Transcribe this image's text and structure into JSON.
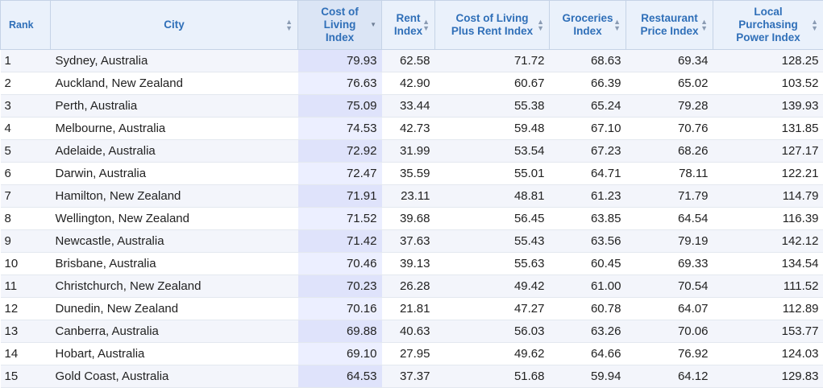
{
  "table": {
    "headers": {
      "rank": "Rank",
      "city": "City",
      "col": "Cost of Living Index",
      "rent": "Rent Index",
      "colr": "Cost of Living Plus Rent Index",
      "groceries": "Groceries Index",
      "restaurant": "Restaurant Price Index",
      "lppi": "Local Purchasing Power Index"
    },
    "sort": {
      "column": "Cost of Living Index",
      "direction": "descending"
    },
    "rows": [
      {
        "rank": "1",
        "city": "Sydney, Australia",
        "col": "79.93",
        "rent": "62.58",
        "colr": "71.72",
        "groceries": "68.63",
        "restaurant": "69.34",
        "lppi": "128.25"
      },
      {
        "rank": "2",
        "city": "Auckland, New Zealand",
        "col": "76.63",
        "rent": "42.90",
        "colr": "60.67",
        "groceries": "66.39",
        "restaurant": "65.02",
        "lppi": "103.52"
      },
      {
        "rank": "3",
        "city": "Perth, Australia",
        "col": "75.09",
        "rent": "33.44",
        "colr": "55.38",
        "groceries": "65.24",
        "restaurant": "79.28",
        "lppi": "139.93"
      },
      {
        "rank": "4",
        "city": "Melbourne, Australia",
        "col": "74.53",
        "rent": "42.73",
        "colr": "59.48",
        "groceries": "67.10",
        "restaurant": "70.76",
        "lppi": "131.85"
      },
      {
        "rank": "5",
        "city": "Adelaide, Australia",
        "col": "72.92",
        "rent": "31.99",
        "colr": "53.54",
        "groceries": "67.23",
        "restaurant": "68.26",
        "lppi": "127.17"
      },
      {
        "rank": "6",
        "city": "Darwin, Australia",
        "col": "72.47",
        "rent": "35.59",
        "colr": "55.01",
        "groceries": "64.71",
        "restaurant": "78.11",
        "lppi": "122.21"
      },
      {
        "rank": "7",
        "city": "Hamilton, New Zealand",
        "col": "71.91",
        "rent": "23.11",
        "colr": "48.81",
        "groceries": "61.23",
        "restaurant": "71.79",
        "lppi": "114.79"
      },
      {
        "rank": "8",
        "city": "Wellington, New Zealand",
        "col": "71.52",
        "rent": "39.68",
        "colr": "56.45",
        "groceries": "63.85",
        "restaurant": "64.54",
        "lppi": "116.39"
      },
      {
        "rank": "9",
        "city": "Newcastle, Australia",
        "col": "71.42",
        "rent": "37.63",
        "colr": "55.43",
        "groceries": "63.56",
        "restaurant": "79.19",
        "lppi": "142.12"
      },
      {
        "rank": "10",
        "city": "Brisbane, Australia",
        "col": "70.46",
        "rent": "39.13",
        "colr": "55.63",
        "groceries": "60.45",
        "restaurant": "69.33",
        "lppi": "134.54"
      },
      {
        "rank": "11",
        "city": "Christchurch, New Zealand",
        "col": "70.23",
        "rent": "26.28",
        "colr": "49.42",
        "groceries": "61.00",
        "restaurant": "70.54",
        "lppi": "111.52"
      },
      {
        "rank": "12",
        "city": "Dunedin, New Zealand",
        "col": "70.16",
        "rent": "21.81",
        "colr": "47.27",
        "groceries": "60.78",
        "restaurant": "64.07",
        "lppi": "112.89"
      },
      {
        "rank": "13",
        "city": "Canberra, Australia",
        "col": "69.88",
        "rent": "40.63",
        "colr": "56.03",
        "groceries": "63.26",
        "restaurant": "70.06",
        "lppi": "153.77"
      },
      {
        "rank": "14",
        "city": "Hobart, Australia",
        "col": "69.10",
        "rent": "27.95",
        "colr": "49.62",
        "groceries": "64.66",
        "restaurant": "76.92",
        "lppi": "124.03"
      },
      {
        "rank": "15",
        "city": "Gold Coast, Australia",
        "col": "64.53",
        "rent": "37.37",
        "colr": "51.68",
        "groceries": "59.94",
        "restaurant": "64.12",
        "lppi": "129.83"
      }
    ]
  },
  "colors": {
    "header_text": "#2f6fb8",
    "header_bg": "#eaf1fb",
    "row_odd": "#f3f5fb",
    "row_even": "#ffffff",
    "sorted_col_odd": "#dfe3fb",
    "sorted_col_even": "#ecefff"
  },
  "icons": {
    "sortable": "sort-up-down-icon",
    "sorted": "sort-down-icon"
  }
}
